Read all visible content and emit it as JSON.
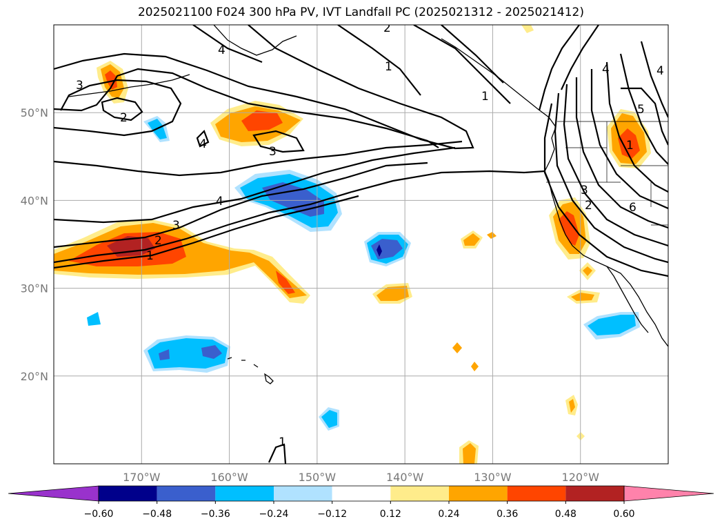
{
  "title": "2025021100 F024 300 hPa PV, IVT Landfall PC (2025021312 - 2025021412)",
  "map": {
    "lon_range": [
      -180,
      -110
    ],
    "lat_range": [
      10,
      60
    ],
    "lon_ticks": [
      {
        "lon": -170,
        "label": "170°W"
      },
      {
        "lon": -160,
        "label": "160°W"
      },
      {
        "lon": -150,
        "label": "150°W"
      },
      {
        "lon": -140,
        "label": "140°W"
      },
      {
        "lon": -130,
        "label": "130°W"
      },
      {
        "lon": -120,
        "label": "120°W"
      }
    ],
    "lat_ticks": [
      {
        "lat": 20,
        "label": "20°N"
      },
      {
        "lat": 30,
        "label": "30°N"
      },
      {
        "lat": 40,
        "label": "40°N"
      },
      {
        "lat": 50,
        "label": "50°N"
      }
    ],
    "grid": true,
    "contour_labels": [
      "1",
      "2",
      "3",
      "4",
      "5",
      "6"
    ]
  },
  "colorbar": {
    "levels": [
      "−0.60",
      "−0.48",
      "−0.36",
      "−0.24",
      "−0.12",
      "0.12",
      "0.24",
      "0.36",
      "0.48",
      "0.60"
    ],
    "colors": [
      "#9932cc",
      "#00008b",
      "#3a5fcd",
      "#00bfff",
      "#b0e2ff",
      "#ffffff",
      "#ffec8b",
      "#ffa500",
      "#ff4500",
      "#b22222",
      "#ff82ab"
    ],
    "extend": "both"
  },
  "fill_colors": {
    "neg1": "#b0e2ff",
    "neg2": "#00bfff",
    "neg3": "#3a5fcd",
    "neg4": "#00008b",
    "pos1": "#ffec8b",
    "pos2": "#ffa500",
    "pos3": "#ff4500",
    "pos4": "#b22222"
  }
}
